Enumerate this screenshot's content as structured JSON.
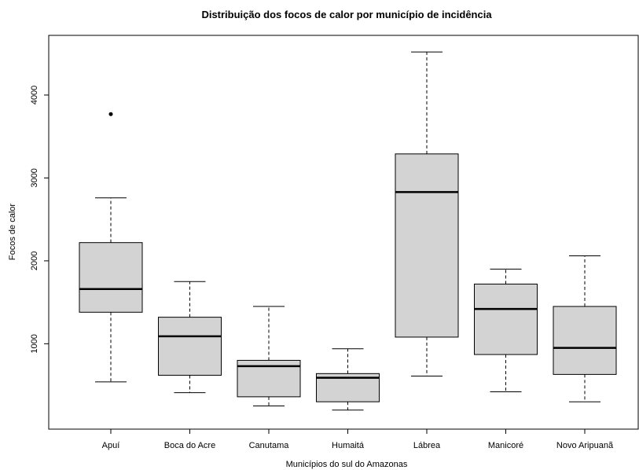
{
  "chart_data": {
    "type": "boxplot",
    "title": "Distribuição dos focos de calor por município de incidência",
    "xlabel": "Municípios do sul do Amazonas",
    "ylabel": "Focos de calor",
    "categories": [
      "Apuí",
      "Boca do Acre",
      "Canutama",
      "Humaitá",
      "Lábrea",
      "Manicoré",
      "Novo Aripuanã"
    ],
    "boxes": [
      {
        "min": 540,
        "q1": 1380,
        "median": 1660,
        "q3": 2220,
        "max": 2760,
        "outliers": [
          3770
        ]
      },
      {
        "min": 410,
        "q1": 620,
        "median": 1090,
        "q3": 1320,
        "max": 1750,
        "outliers": []
      },
      {
        "min": 250,
        "q1": 360,
        "median": 730,
        "q3": 800,
        "max": 1450,
        "outliers": []
      },
      {
        "min": 200,
        "q1": 300,
        "median": 590,
        "q3": 640,
        "max": 940,
        "outliers": []
      },
      {
        "min": 610,
        "q1": 1080,
        "median": 2830,
        "q3": 3290,
        "max": 4520,
        "outliers": []
      },
      {
        "min": 420,
        "q1": 870,
        "median": 1420,
        "q3": 1720,
        "max": 1900,
        "outliers": []
      },
      {
        "min": 300,
        "q1": 630,
        "median": 950,
        "q3": 1450,
        "max": 2060,
        "outliers": []
      }
    ],
    "yticks": [
      1000,
      2000,
      3000,
      4000
    ],
    "ylim": [
      -30,
      4720
    ],
    "box_fill": "#d3d3d3",
    "line_color": "#000000"
  }
}
